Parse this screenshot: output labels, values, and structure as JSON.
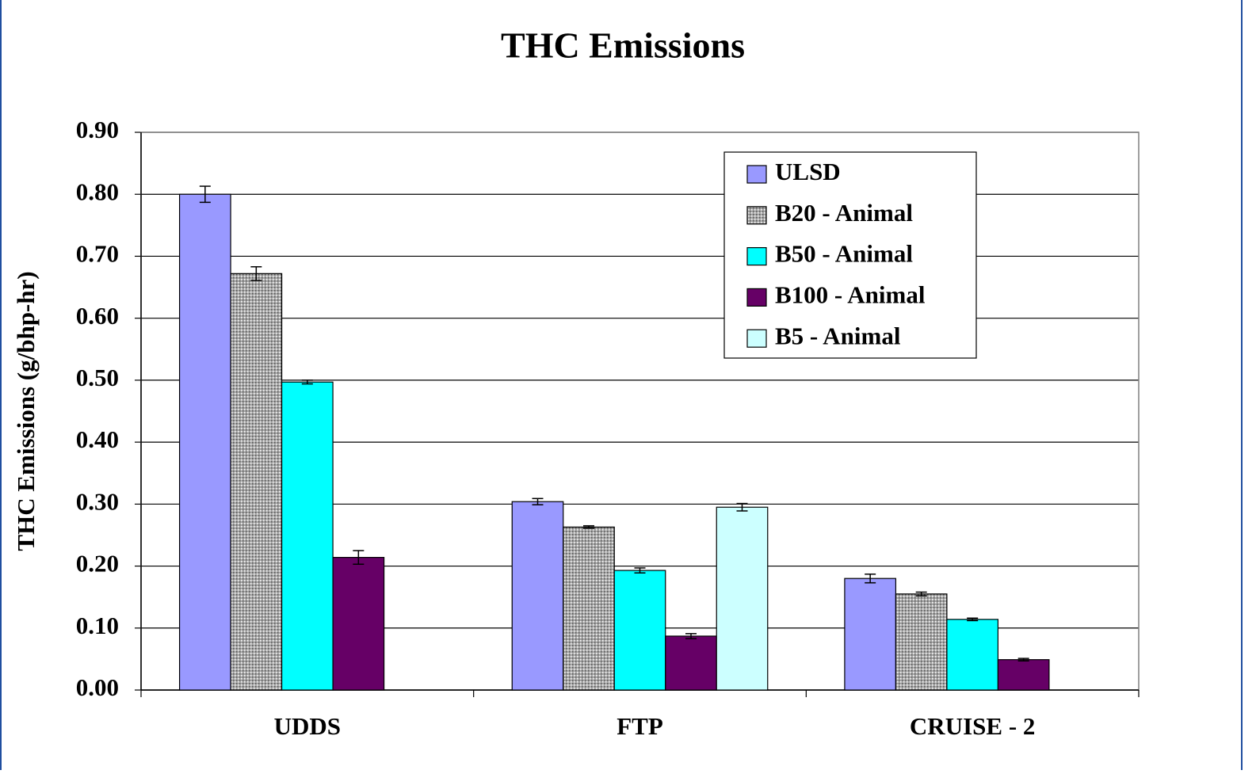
{
  "chart_data": {
    "type": "bar",
    "title": "THC Emissions",
    "y_label": "THC Emissions (g/bhp-hr)",
    "categories": [
      "UDDS",
      "FTP",
      "CRUISE - 2"
    ],
    "series": [
      {
        "name": "ULSD",
        "color": "#9999ff",
        "values": [
          0.8,
          0.304,
          0.18
        ],
        "errors": [
          0.013,
          0.005,
          0.007
        ]
      },
      {
        "name": "B20 - Animal",
        "color": "#a6a6a6",
        "pattern": "dotted",
        "values": [
          0.672,
          0.263,
          0.155
        ],
        "errors": [
          0.011,
          0.002,
          0.003
        ]
      },
      {
        "name": "B50 - Animal",
        "color": "#00ffff",
        "values": [
          0.497,
          0.193,
          0.114
        ],
        "errors": [
          0.003,
          0.004,
          0.002
        ]
      },
      {
        "name": "B100 - Animal",
        "color": "#660066",
        "values": [
          0.214,
          0.087,
          0.049
        ],
        "errors": [
          0.011,
          0.004,
          0.002
        ]
      },
      {
        "name": "B5 - Animal",
        "color": "#ccffff",
        "values": [
          null,
          0.295,
          null
        ],
        "errors": [
          null,
          0.006,
          null
        ]
      }
    ],
    "ylim": [
      0,
      0.9
    ],
    "yticks": [
      {
        "value": 0,
        "label": "0.00"
      },
      {
        "value": 0.1,
        "label": "0.10"
      },
      {
        "value": 0.2,
        "label": "0.20"
      },
      {
        "value": 0.3,
        "label": "0.30"
      },
      {
        "value": 0.4,
        "label": "0.40"
      },
      {
        "value": 0.5,
        "label": "0.50"
      },
      {
        "value": 0.6,
        "label": "0.60"
      },
      {
        "value": 0.7,
        "label": "0.70"
      },
      {
        "value": 0.8,
        "label": "0.80"
      },
      {
        "value": 0.9,
        "label": "0.90"
      }
    ],
    "grid": true,
    "error_bars": true,
    "legend_position": "top-right"
  }
}
